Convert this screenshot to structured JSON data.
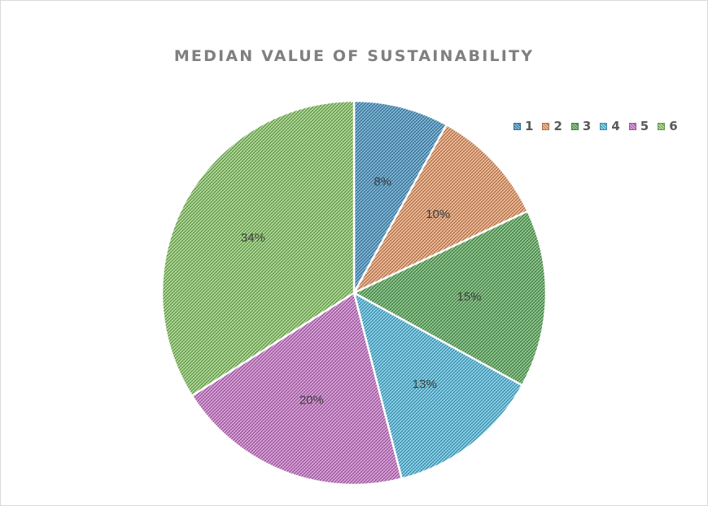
{
  "chart_data": {
    "type": "pie",
    "title": "MEDIAN VALUE OF SUSTAINABILITY",
    "categories": [
      "1",
      "2",
      "3",
      "4",
      "5",
      "6"
    ],
    "values": [
      8,
      10,
      15,
      13,
      20,
      34
    ],
    "data_labels": [
      "8%",
      "10%",
      "15%",
      "13%",
      "20%",
      "34%"
    ],
    "colors": [
      "#4a9ed1",
      "#f7a26b",
      "#5fb55f",
      "#55c8ef",
      "#d67ad6",
      "#8fd46a"
    ],
    "fill_pattern": "crosshatch",
    "legend_position": "top-right",
    "start_angle_deg": 0,
    "direction": "clockwise"
  }
}
